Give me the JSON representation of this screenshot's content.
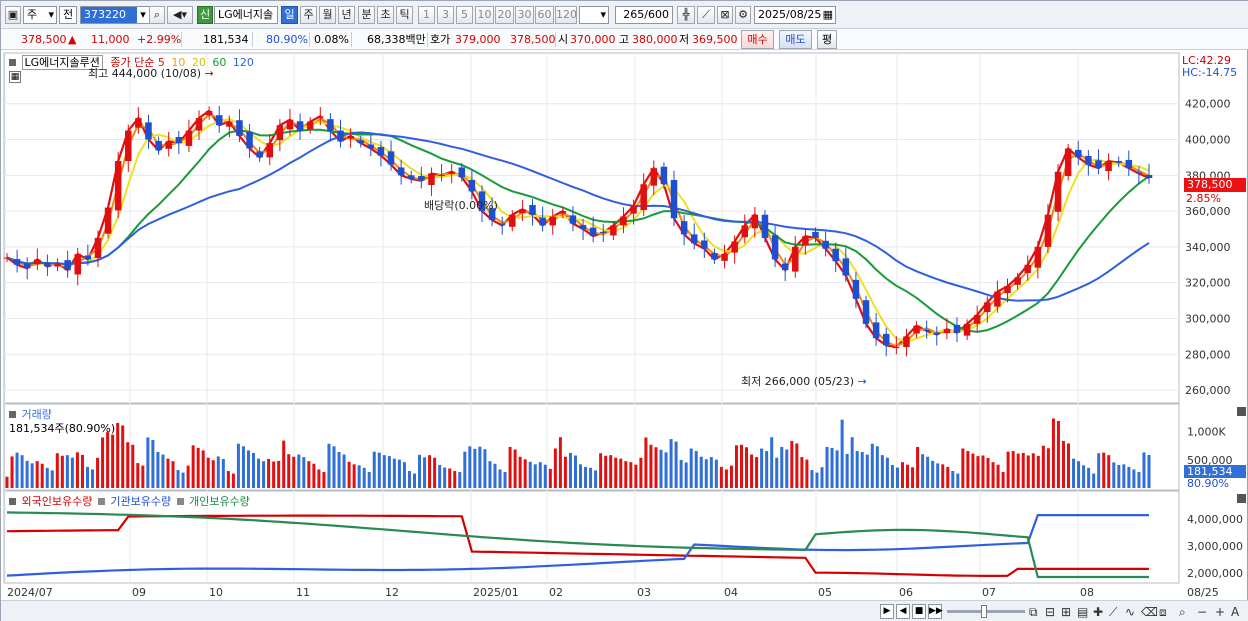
{
  "toolbar": {
    "period_select": "주",
    "prev_label": "전",
    "stock_code": "373220",
    "new_badge": "신",
    "stock_name": "LG에너지솔",
    "periods": [
      "일",
      "주",
      "월",
      "년",
      "분",
      "초",
      "틱"
    ],
    "minute_options": [
      "1",
      "3",
      "5",
      "10",
      "20",
      "30",
      "60",
      "120"
    ],
    "bar_count": "265",
    "bar_total": "/600",
    "date": "2025/08/25"
  },
  "quote": {
    "price": "378,500",
    "change_arrow": "▲",
    "change": "11,000",
    "change_pct": "+2.99%",
    "volume": "181,534",
    "volume_ratio": "80.90%",
    "turnover": "0.08%",
    "amount": "68,338백만",
    "ask_label": "호가",
    "ask1": "379,000",
    "ask2": "378,500",
    "open_label": "시",
    "open": "370,000",
    "high_label": "고",
    "high": "380,000",
    "low_label": "저",
    "low": "369,500",
    "buy_label": "매수",
    "sell_label": "매도",
    "eval_label": "평"
  },
  "price_pane": {
    "stock_title": "LG에너지솔루션",
    "ma_label": "종가 단순",
    "ma_periods": [
      "5",
      "10",
      "20",
      "60",
      "120"
    ],
    "ma_colors": [
      "#e01010",
      "#f08a10",
      "#f0e020",
      "#1a9a3a",
      "#2f5fe0"
    ],
    "lc_label": "LC:42.29",
    "hc_label": "HC:-14.75",
    "high_annotation": "최고 444,000 (10/08)",
    "low_annotation": "최저 266,000 (05/23)",
    "dividend_annotation": "배당락(0.00%)",
    "last_price_tag": "378,500",
    "last_pct_tag": "2.85%"
  },
  "volume_pane": {
    "title": "거래량",
    "value": "181,534주(80.90%)",
    "tag": "181,534",
    "ratio_tag": "80.90%",
    "axis_labels": [
      "1,000K",
      "500,000"
    ]
  },
  "holding_pane": {
    "foreign_label": "외국인보유수량",
    "institution_label": "기관보유수량",
    "individual_label": "개인보유수량",
    "axis_labels": [
      "4,000,000",
      "3,000,000",
      "2,000,000"
    ]
  },
  "x_axis": {
    "labels": [
      "2024/07",
      "09",
      "10",
      "11",
      "12",
      "2025/01",
      "02",
      "03",
      "04",
      "05",
      "06",
      "07",
      "08",
      "08/25"
    ]
  },
  "y_axis": {
    "labels": [
      "420,000",
      "400,000",
      "380,000",
      "360,000",
      "340,000",
      "320,000",
      "300,000",
      "280,000",
      "260,000"
    ]
  },
  "chart_data": {
    "type": "candlestick",
    "price_y_range": [
      255000,
      445000
    ],
    "closes": [
      334000,
      330000,
      328000,
      333000,
      329000,
      331000,
      327000,
      336000,
      333000,
      345000,
      362000,
      388000,
      405000,
      412000,
      400000,
      394000,
      399000,
      398000,
      405000,
      412000,
      416000,
      408000,
      410000,
      402000,
      395000,
      390000,
      398000,
      408000,
      411000,
      405000,
      410000,
      413000,
      405000,
      399000,
      402000,
      398000,
      395000,
      391000,
      386000,
      380000,
      378000,
      377000,
      381000,
      380000,
      382000,
      379000,
      371000,
      360000,
      355000,
      352000,
      358000,
      361000,
      358000,
      352000,
      357000,
      360000,
      353000,
      350000,
      346000,
      348000,
      352000,
      357000,
      363000,
      375000,
      384000,
      375000,
      356000,
      347000,
      342000,
      339000,
      333000,
      336000,
      343000,
      352000,
      358000,
      345000,
      333000,
      327000,
      340000,
      346000,
      345000,
      339000,
      332000,
      324000,
      311000,
      297000,
      289000,
      285000,
      284000,
      290000,
      296000,
      293000,
      291000,
      294000,
      292000,
      297000,
      302000,
      309000,
      315000,
      318000,
      323000,
      330000,
      340000,
      358000,
      382000,
      395000,
      390000,
      386000,
      384000,
      388000,
      387000,
      384000,
      381000,
      378500
    ],
    "volume_max": 1400000,
    "holding_range": [
      1700000,
      4600000
    ]
  }
}
